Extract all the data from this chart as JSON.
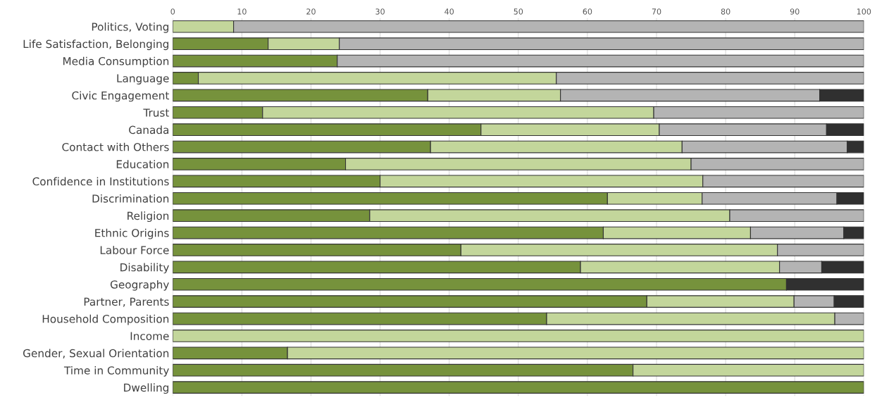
{
  "chart_data": {
    "type": "bar",
    "orientation": "horizontal",
    "stacked": true,
    "grid": "x",
    "legend": false,
    "categories": [
      "Politics, Voting",
      "Life Satisfaction, Belonging",
      "Media Consumption",
      "Language",
      "Civic Engagement",
      "Trust",
      "Canada",
      "Contact with Others",
      "Education",
      "Confidence in Institutions",
      "Discrimination",
      "Religion",
      "Ethnic Origins",
      "Labour Force",
      "Disability",
      "Geography",
      "Partner, Parents",
      "Household Composition",
      "Income",
      "Gender, Sexual Orientation",
      "Time in Community",
      "Dwelling"
    ],
    "xlim": [
      0,
      100
    ],
    "xticks": [
      0,
      10,
      20,
      30,
      40,
      50,
      60,
      70,
      80,
      90,
      100
    ],
    "series": [
      {
        "color": "#76923c",
        "values": [
          0,
          13.8,
          23.8,
          3.7,
          36.9,
          13.0,
          44.6,
          37.3,
          25.0,
          30.0,
          62.9,
          28.5,
          62.3,
          41.7,
          59.0,
          88.8,
          68.6,
          54.1,
          0,
          16.6,
          66.6,
          100
        ]
      },
      {
        "color": "#c3d69b",
        "values": [
          8.8,
          10.3,
          0,
          51.8,
          19.2,
          56.6,
          25.8,
          36.4,
          50.0,
          46.7,
          13.7,
          52.1,
          21.3,
          45.8,
          28.8,
          0,
          21.3,
          41.7,
          100,
          83.4,
          33.4,
          0
        ]
      },
      {
        "color": "#b4b4b4",
        "values": [
          91.2,
          75.9,
          76.2,
          44.5,
          37.5,
          30.4,
          24.2,
          23.9,
          25.0,
          23.3,
          19.5,
          19.4,
          13.5,
          12.5,
          6.1,
          0,
          5.8,
          4.2,
          0,
          0,
          0,
          0
        ]
      },
      {
        "color": "#303030",
        "values": [
          0,
          0,
          0,
          0,
          6.4,
          0,
          5.4,
          2.4,
          0,
          0,
          3.9,
          0,
          2.9,
          0,
          6.1,
          11.2,
          4.3,
          0,
          0,
          0,
          0,
          0
        ]
      }
    ]
  }
}
